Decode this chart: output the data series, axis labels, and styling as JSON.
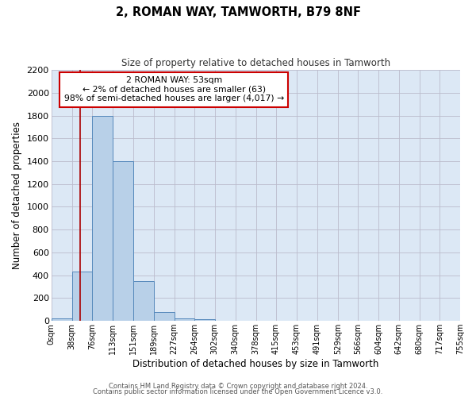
{
  "title": "2, ROMAN WAY, TAMWORTH, B79 8NF",
  "subtitle": "Size of property relative to detached houses in Tamworth",
  "xlabel": "Distribution of detached houses by size in Tamworth",
  "ylabel": "Number of detached properties",
  "bar_color": "#b8d0e8",
  "bar_edge_color": "#5588bb",
  "grid_color": "#bbbbcc",
  "background_color": "#dce8f5",
  "vline_color": "#aa0000",
  "vline_x": 53,
  "bin_edges": [
    0,
    38,
    76,
    113,
    151,
    189,
    227,
    264,
    302,
    340,
    378,
    415,
    453,
    491,
    529,
    566,
    604,
    642,
    680,
    717,
    755
  ],
  "bar_heights": [
    20,
    430,
    1800,
    1400,
    350,
    80,
    25,
    15,
    0,
    0,
    0,
    0,
    0,
    0,
    0,
    0,
    0,
    0,
    0,
    0
  ],
  "tick_labels": [
    "0sqm",
    "38sqm",
    "76sqm",
    "113sqm",
    "151sqm",
    "189sqm",
    "227sqm",
    "264sqm",
    "302sqm",
    "340sqm",
    "378sqm",
    "415sqm",
    "453sqm",
    "491sqm",
    "529sqm",
    "566sqm",
    "604sqm",
    "642sqm",
    "680sqm",
    "717sqm",
    "755sqm"
  ],
  "ylim": [
    0,
    2200
  ],
  "yticks": [
    0,
    200,
    400,
    600,
    800,
    1000,
    1200,
    1400,
    1600,
    1800,
    2000,
    2200
  ],
  "annotation_title": "2 ROMAN WAY: 53sqm",
  "annotation_line1": "← 2% of detached houses are smaller (63)",
  "annotation_line2": "98% of semi-detached houses are larger (4,017) →",
  "annotation_box_color": "#ffffff",
  "annotation_box_edge_color": "#cc0000",
  "footer_line1": "Contains HM Land Registry data © Crown copyright and database right 2024.",
  "footer_line2": "Contains public sector information licensed under the Open Government Licence v3.0."
}
